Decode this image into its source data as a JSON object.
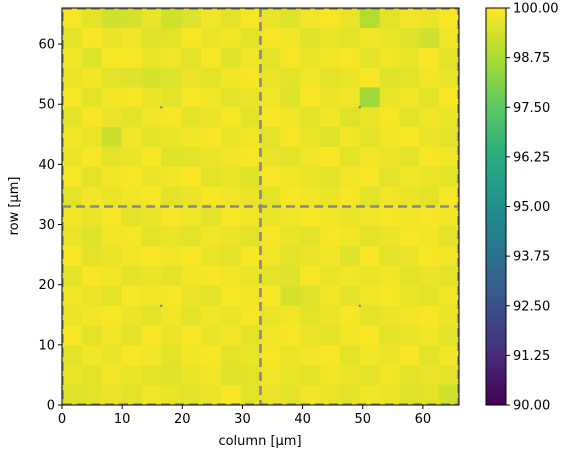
{
  "chart_data": {
    "type": "heatmap",
    "title": "",
    "xlabel": "column [µm]",
    "ylabel": "row [µm]",
    "xlim": [
      0,
      66
    ],
    "ylim": [
      0,
      66
    ],
    "grid": false,
    "x_ticks": [
      "0",
      "10",
      "20",
      "30",
      "40",
      "50",
      "60"
    ],
    "y_ticks": [
      "0",
      "10",
      "20",
      "30",
      "40",
      "50",
      "60"
    ],
    "cell_size_um": 3.3,
    "grid_cells": [
      20,
      20
    ],
    "colorbar": {
      "min": 90.0,
      "max": 100.0,
      "colormap": "viridis",
      "ticks": [
        "90.00",
        "91.25",
        "92.50",
        "93.75",
        "95.00",
        "96.25",
        "97.50",
        "98.75",
        "100.00"
      ]
    },
    "annotations": {
      "crosshair_at_um": [
        33,
        33
      ],
      "crosshair_color": "#888888",
      "marker_points_um": [
        [
          16.5,
          49.5
        ],
        [
          49.5,
          49.5
        ],
        [
          16.5,
          16.5
        ],
        [
          49.5,
          16.5
        ]
      ]
    },
    "values_rows_top_to_bottom": [
      [
        99.9,
        99.6,
        99.3,
        99.4,
        99.7,
        99.3,
        99.5,
        99.8,
        99.6,
        99.9,
        99.7,
        99.5,
        99.8,
        99.9,
        99.7,
        98.9,
        99.6,
        99.8,
        99.7,
        99.9
      ],
      [
        99.6,
        99.9,
        99.7,
        99.8,
        99.5,
        99.6,
        99.9,
        99.7,
        99.8,
        99.6,
        99.9,
        99.8,
        99.5,
        99.7,
        99.6,
        99.8,
        99.7,
        99.5,
        99.3,
        99.8
      ],
      [
        99.8,
        99.5,
        99.9,
        99.9,
        99.7,
        99.8,
        99.6,
        99.9,
        99.5,
        99.8,
        99.6,
        99.9,
        99.7,
        99.8,
        99.9,
        99.6,
        99.8,
        99.7,
        99.9,
        99.6
      ],
      [
        99.7,
        99.8,
        99.6,
        99.5,
        99.4,
        99.5,
        99.7,
        99.6,
        99.8,
        99.9,
        99.7,
        99.6,
        99.8,
        99.6,
        99.7,
        99.9,
        99.5,
        99.6,
        99.8,
        99.7
      ],
      [
        99.9,
        99.6,
        99.8,
        99.9,
        99.7,
        99.6,
        99.9,
        99.8,
        99.6,
        99.7,
        99.8,
        99.5,
        99.9,
        99.7,
        99.8,
        98.6,
        99.7,
        99.8,
        99.6,
        99.9
      ],
      [
        99.6,
        99.9,
        99.7,
        99.6,
        99.8,
        99.9,
        99.6,
        99.7,
        99.9,
        99.6,
        99.9,
        99.8,
        99.6,
        99.8,
        99.5,
        99.7,
        99.9,
        99.6,
        99.8,
        99.7
      ],
      [
        99.8,
        99.7,
        99.2,
        99.8,
        99.6,
        99.7,
        99.8,
        99.9,
        99.7,
        99.8,
        99.6,
        99.9,
        99.7,
        99.5,
        99.8,
        99.6,
        99.8,
        99.9,
        99.7,
        99.6
      ],
      [
        99.7,
        99.9,
        99.6,
        99.7,
        99.9,
        99.5,
        99.6,
        99.7,
        99.8,
        99.9,
        99.7,
        99.6,
        99.8,
        99.9,
        99.6,
        99.8,
        99.7,
        99.6,
        99.9,
        99.8
      ],
      [
        99.9,
        99.6,
        99.8,
        99.9,
        99.7,
        99.8,
        99.9,
        99.6,
        99.7,
        99.5,
        99.9,
        99.8,
        99.7,
        99.6,
        99.8,
        99.9,
        99.6,
        99.8,
        99.7,
        99.6
      ],
      [
        99.6,
        99.8,
        99.7,
        99.8,
        99.9,
        99.6,
        99.7,
        99.9,
        99.8,
        99.7,
        99.6,
        99.9,
        99.8,
        99.7,
        99.9,
        99.6,
        99.8,
        99.7,
        99.6,
        99.9
      ],
      [
        99.8,
        99.7,
        99.9,
        99.6,
        99.7,
        99.9,
        99.8,
        99.6,
        99.9,
        99.8,
        99.7,
        99.8,
        99.9,
        99.8,
        99.7,
        99.8,
        99.9,
        99.8,
        99.9,
        99.8
      ],
      [
        99.7,
        99.5,
        99.8,
        99.9,
        99.6,
        99.7,
        99.6,
        99.8,
        99.7,
        99.6,
        99.9,
        99.7,
        99.6,
        99.9,
        99.8,
        99.6,
        99.7,
        99.9,
        99.8,
        99.6
      ],
      [
        99.9,
        99.6,
        99.7,
        99.8,
        99.9,
        99.8,
        99.9,
        99.7,
        99.6,
        99.9,
        99.8,
        99.6,
        99.7,
        99.8,
        99.5,
        99.9,
        99.6,
        99.7,
        99.9,
        99.8
      ],
      [
        99.6,
        99.9,
        99.8,
        99.6,
        99.7,
        99.6,
        99.8,
        99.9,
        99.8,
        99.7,
        99.6,
        99.5,
        99.9,
        99.7,
        99.8,
        99.7,
        99.8,
        99.6,
        99.7,
        99.6
      ],
      [
        99.8,
        99.7,
        99.6,
        99.9,
        99.8,
        99.9,
        99.7,
        99.6,
        99.9,
        99.8,
        99.9,
        99.4,
        99.5,
        99.8,
        99.6,
        99.8,
        99.9,
        99.7,
        99.6,
        99.8
      ],
      [
        99.7,
        99.8,
        99.9,
        99.7,
        99.6,
        99.8,
        99.6,
        99.8,
        99.7,
        99.9,
        99.7,
        99.8,
        99.6,
        99.7,
        99.9,
        99.6,
        99.7,
        99.8,
        99.9,
        99.7
      ],
      [
        99.9,
        99.6,
        99.8,
        99.6,
        99.9,
        99.7,
        99.9,
        99.7,
        99.8,
        99.6,
        99.8,
        99.9,
        99.7,
        99.6,
        99.8,
        99.9,
        99.6,
        99.7,
        99.8,
        99.6
      ],
      [
        99.6,
        99.8,
        99.7,
        99.9,
        99.8,
        99.6,
        99.8,
        99.9,
        99.6,
        99.7,
        99.9,
        99.7,
        99.8,
        99.9,
        99.6,
        99.8,
        99.7,
        99.9,
        99.6,
        99.8
      ],
      [
        99.7,
        99.6,
        99.8,
        99.7,
        99.6,
        99.5,
        99.7,
        99.8,
        99.5,
        99.6,
        99.8,
        99.7,
        99.6,
        99.8,
        99.7,
        99.6,
        99.8,
        99.6,
        99.7,
        99.6
      ],
      [
        99.5,
        99.6,
        99.7,
        99.6,
        99.8,
        99.7,
        99.6,
        99.7,
        99.9,
        99.6,
        99.7,
        99.6,
        99.8,
        99.7,
        99.6,
        99.8,
        99.7,
        99.5,
        99.6,
        99.3
      ]
    ]
  }
}
